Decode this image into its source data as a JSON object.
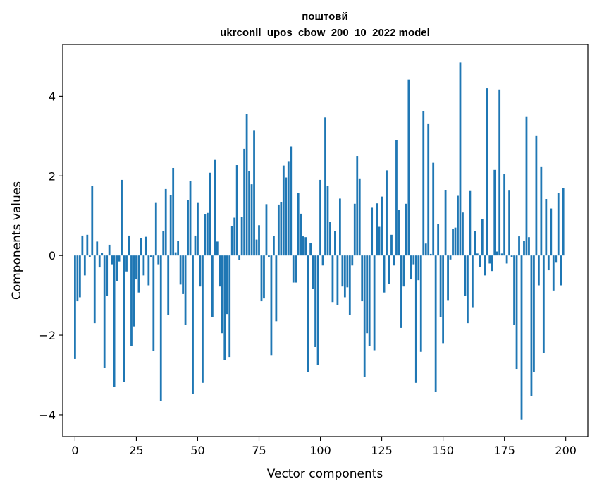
{
  "chart_data": {
    "type": "bar",
    "title_line1": "поштовй",
    "title_line2": "ukrconll_upos_cbow_200_10_2022 model",
    "xlabel": "Vector components",
    "ylabel": "Components values",
    "xlim": [
      -5,
      209
    ],
    "ylim": [
      -4.55,
      5.3
    ],
    "xticks": [
      0,
      25,
      50,
      75,
      100,
      125,
      150,
      175,
      200
    ],
    "yticks": [
      -4,
      -2,
      0,
      2,
      4
    ],
    "ytick_labels": [
      "−4",
      "−2",
      "0",
      "2",
      "4"
    ],
    "grid": false,
    "bar_color": "#1f77b4",
    "values": [
      -2.6,
      -1.15,
      -1.05,
      0.5,
      -0.5,
      0.52,
      -0.05,
      1.75,
      -1.7,
      0.35,
      -0.3,
      0.06,
      -2.82,
      -1.02,
      0.27,
      -0.22,
      -3.3,
      -0.65,
      -0.15,
      1.9,
      -3.17,
      -0.4,
      0.5,
      -2.27,
      -1.78,
      -0.6,
      -0.93,
      0.43,
      -0.5,
      0.47,
      -0.75,
      -0.05,
      -2.4,
      1.32,
      -0.22,
      -3.65,
      0.62,
      1.67,
      -1.5,
      1.52,
      2.2,
      0.08,
      0.37,
      -0.73,
      -0.97,
      -1.75,
      1.39,
      1.87,
      -3.47,
      0.5,
      1.32,
      -0.78,
      -3.2,
      1.03,
      1.07,
      2.08,
      -1.55,
      2.4,
      0.35,
      -0.78,
      -1.95,
      -2.62,
      -1.47,
      -2.55,
      0.74,
      0.95,
      2.27,
      -0.12,
      0.97,
      2.68,
      3.55,
      2.12,
      1.79,
      3.15,
      0.4,
      0.76,
      -1.15,
      -1.08,
      1.29,
      -0.05,
      -2.5,
      0.49,
      -1.65,
      1.28,
      1.34,
      2.26,
      1.96,
      2.37,
      2.74,
      -0.68,
      -0.68,
      1.57,
      1.05,
      0.48,
      0.46,
      -2.93,
      0.31,
      -0.84,
      -2.3,
      -2.76,
      1.9,
      -0.25,
      3.47,
      1.74,
      0.85,
      -1.17,
      0.62,
      -1.24,
      1.43,
      -0.78,
      -1.05,
      -0.8,
      -1.5,
      -0.25,
      1.3,
      2.5,
      1.92,
      -1.15,
      -3.05,
      -1.95,
      -2.28,
      1.2,
      -2.38,
      1.31,
      0.72,
      1.48,
      -0.93,
      2.14,
      -0.72,
      0.52,
      -0.25,
      2.9,
      1.14,
      -1.82,
      -0.78,
      1.3,
      4.42,
      -0.6,
      -0.22,
      -3.2,
      -0.62,
      -2.42,
      3.62,
      0.3,
      3.3,
      0.04,
      2.33,
      -3.42,
      0.8,
      -1.55,
      -2.2,
      1.64,
      -1.12,
      -0.1,
      0.67,
      0.7,
      1.5,
      4.85,
      1.08,
      -1.02,
      -1.7,
      1.62,
      -1.3,
      0.62,
      0.05,
      -0.28,
      0.91,
      -0.5,
      4.2,
      -0.2,
      -0.39,
      2.15,
      0.1,
      4.17,
      0.05,
      2.04,
      -0.2,
      1.63,
      -0.05,
      -1.75,
      -2.85,
      0.48,
      -4.12,
      0.37,
      3.48,
      0.46,
      -3.53,
      -2.93,
      3.0,
      -0.75,
      2.22,
      -2.45,
      1.42,
      -0.37,
      1.18,
      -0.88,
      -0.18,
      1.57,
      -0.75,
      1.7
    ]
  }
}
